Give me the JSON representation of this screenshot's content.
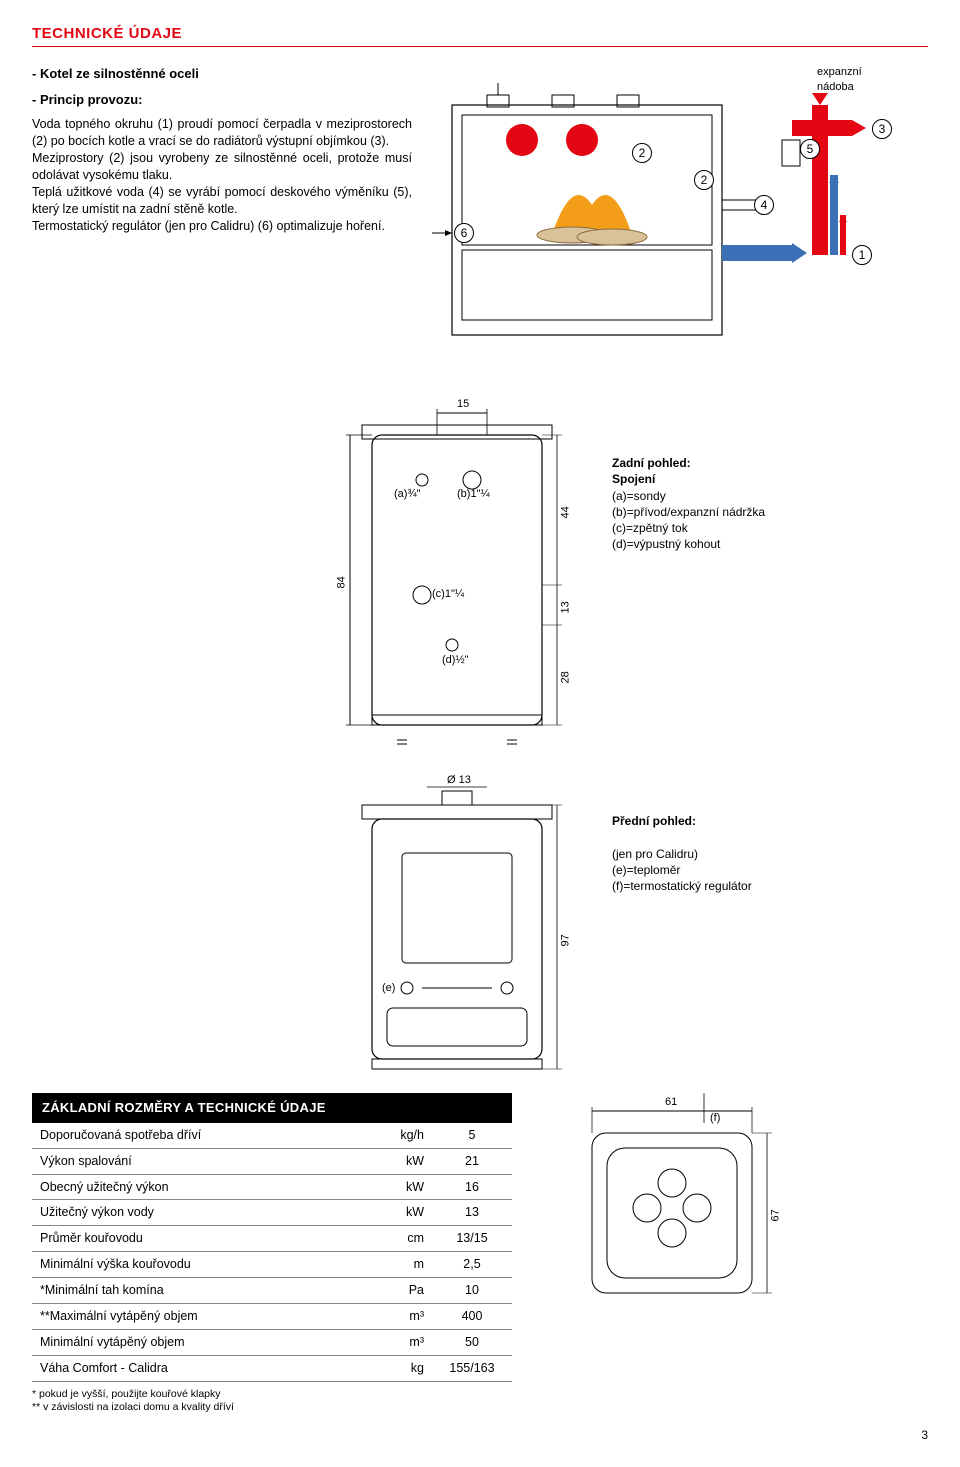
{
  "title": "TECHNICKÉ ÚDAJE",
  "bullet1": "- Kotel ze silnostěnné oceli",
  "bullet2_head": "- Princip provozu:",
  "bullet2_body": "Voda topného okruhu (1) proudí pomocí čerpadla v meziprostorech (2) po bocích kotle a vrací se do radiátorů výstupní objímkou (3).\nMeziprostory (2) jsou vyrobeny ze silnostěnné oceli, protože musí odolávat vysokému tlaku.\nTeplá užitkové voda (4) se vyrábí pomocí deskového výměníku (5), který lze umístit na zadní stěně kotle.\nTermostatický regulátor (jen pro Calidru) (6) optimalizuje hoření.",
  "diagram_top": {
    "label_expanzni": "expanzní\nnádoba",
    "bubbles": {
      "n1": "1",
      "n2": "2",
      "n2b": "2",
      "n3": "3",
      "n4": "4",
      "n5": "5",
      "n6": "6"
    },
    "colors": {
      "red": "#e30613",
      "blue": "#3b6fb6",
      "orange": "#f39200",
      "grey": "#888"
    }
  },
  "rear_view": {
    "top_dim": "15",
    "a_label": "(a)¾\"",
    "b_label": "(b)1\"¼",
    "c_label": "(c)1\"¼",
    "d_label": "(d)½\"",
    "h_84": "84",
    "h_44": "44",
    "h_13": "13",
    "h_28": "28",
    "legend_title": "Zadní pohled:",
    "legend_sub": "Spojení",
    "legend_a": "(a)=sondy",
    "legend_b": "(b)=přívod/expanzní nádržka",
    "legend_c": "(c)=zpětný tok",
    "legend_d": "(d)=výpustný kohout"
  },
  "front_view": {
    "diam": "Ø 13",
    "e_label": "(e)",
    "f_label": "(f)",
    "h_97": "97",
    "w_61": "61",
    "h_67": "67",
    "legend_title": "Přední pohled:",
    "legend_note": "(jen pro Calidru)",
    "legend_e": "(e)=teploměr",
    "legend_f": "(f)=termostatický regulátor"
  },
  "spec": {
    "bar_title": "ZÁKLADNÍ ROZMĚRY A TECHNICKÉ ÚDAJE",
    "rows": [
      {
        "name": "Doporučovaná spotřeba dříví",
        "unit": "kg/h",
        "val": "5"
      },
      {
        "name": "Výkon spalování",
        "unit": "kW",
        "val": "21"
      },
      {
        "name": "Obecný užitečný výkon",
        "unit": "kW",
        "val": "16"
      },
      {
        "name": "Užitečný výkon vody",
        "unit": "kW",
        "val": "13"
      },
      {
        "name": "Průměr kouřovodu",
        "unit": "cm",
        "val": "13/15"
      },
      {
        "name": "Minimální výška kouřovodu",
        "unit": "m",
        "val": "2,5"
      },
      {
        "name": "*Minimální tah komína",
        "unit": "Pa",
        "val": "10"
      },
      {
        "name": "**Maximální vytápěný objem",
        "unit": "m³",
        "val": "400"
      },
      {
        "name": "Minimální vytápěný objem",
        "unit": "m³",
        "val": "50"
      },
      {
        "name": "Váha Comfort - Calidra",
        "unit": "kg",
        "val": "155/163"
      }
    ],
    "foot1": "* pokud je vyšší, použijte kouřové klapky",
    "foot2": "** v závislosti na izolaci domu a kvality dříví"
  },
  "page_num": "3"
}
